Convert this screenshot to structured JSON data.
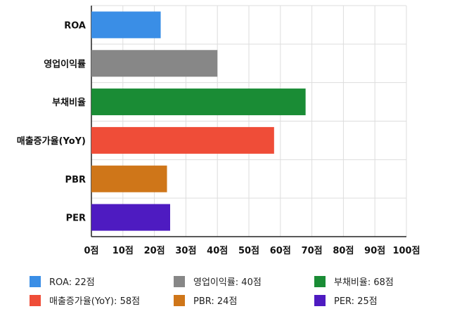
{
  "chart_data": {
    "type": "bar",
    "orientation": "horizontal",
    "title": "",
    "xlabel": "",
    "ylabel": "",
    "categories": [
      "ROA",
      "영업이익률",
      "부채비율",
      "매출증가율(YoY)",
      "PBR",
      "PER"
    ],
    "values": [
      22,
      40,
      68,
      58,
      24,
      25
    ],
    "colors": [
      "#3a8ee6",
      "#878787",
      "#1a8c35",
      "#ef4d38",
      "#cf7619",
      "#4e1bc1"
    ],
    "xlim": [
      0,
      100
    ],
    "xticks": [
      0,
      10,
      20,
      30,
      40,
      50,
      60,
      70,
      80,
      90,
      100
    ],
    "tick_suffix": "점",
    "grid": true,
    "legend_position": "bottom",
    "legend": [
      {
        "label": "ROA: 22점",
        "color": "#3a8ee6"
      },
      {
        "label": "영업이익률: 40점",
        "color": "#878787"
      },
      {
        "label": "부채비율: 68점",
        "color": "#1a8c35"
      },
      {
        "label": "매출증가율(YoY): 58점",
        "color": "#ef4d38"
      },
      {
        "label": "PBR: 24점",
        "color": "#cf7619"
      },
      {
        "label": "PER: 25점",
        "color": "#4e1bc1"
      }
    ]
  }
}
